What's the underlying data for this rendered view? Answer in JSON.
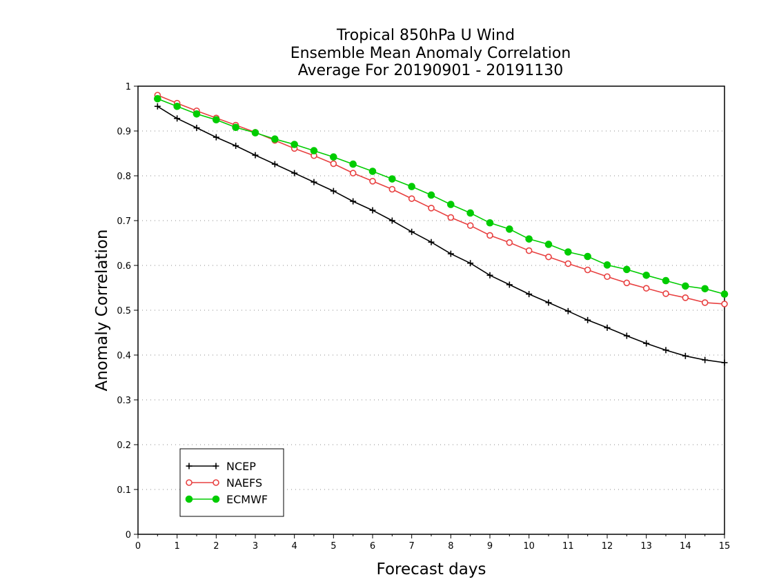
{
  "chart_data": {
    "type": "line",
    "title": [
      "Tropical 850hPa U Wind",
      "Ensemble Mean Anomaly Correlation",
      "Average For 20190901 - 20191130"
    ],
    "xlabel": "Forecast days",
    "ylabel": "Anomaly Correlation",
    "xlim": [
      0,
      15
    ],
    "ylim": [
      0,
      1
    ],
    "xticks": [
      "0",
      "1",
      "2",
      "3",
      "4",
      "5",
      "6",
      "7",
      "8",
      "9",
      "10",
      "11",
      "12",
      "13",
      "14",
      "15"
    ],
    "yticks": [
      "0",
      "0.1",
      "0.2",
      "0.3",
      "0.4",
      "0.5",
      "0.6",
      "0.7",
      "0.8",
      "0.9",
      "1"
    ],
    "grid": true,
    "legend_position": "bottom-left",
    "x": [
      0.5,
      1,
      1.5,
      2,
      2.5,
      3,
      3.5,
      4,
      4.5,
      5,
      5.5,
      6,
      6.5,
      7,
      7.5,
      8,
      8.5,
      9,
      9.5,
      10,
      10.5,
      11,
      11.5,
      12,
      12.5,
      13,
      13.5,
      14,
      14.5,
      15
    ],
    "series": [
      {
        "name": "NCEP",
        "color": "#000000",
        "marker": "plus",
        "values": [
          0.955,
          0.928,
          0.907,
          0.886,
          0.867,
          0.846,
          0.826,
          0.806,
          0.786,
          0.766,
          0.743,
          0.723,
          0.7,
          0.675,
          0.652,
          0.626,
          0.605,
          0.578,
          0.557,
          0.536,
          0.517,
          0.498,
          0.478,
          0.461,
          0.443,
          0.426,
          0.411,
          0.398,
          0.389,
          0.383
        ]
      },
      {
        "name": "NAEFS",
        "color": "#e84040",
        "marker": "open-circle",
        "values": [
          0.98,
          0.962,
          0.945,
          0.929,
          0.913,
          0.897,
          0.879,
          0.861,
          0.845,
          0.827,
          0.806,
          0.788,
          0.77,
          0.749,
          0.728,
          0.707,
          0.689,
          0.667,
          0.651,
          0.633,
          0.619,
          0.604,
          0.59,
          0.575,
          0.561,
          0.549,
          0.537,
          0.528,
          0.517,
          0.514
        ]
      },
      {
        "name": "ECMWF",
        "color": "#00cc00",
        "marker": "filled-circle",
        "values": [
          0.972,
          0.955,
          0.938,
          0.925,
          0.908,
          0.896,
          0.882,
          0.87,
          0.856,
          0.842,
          0.826,
          0.81,
          0.793,
          0.776,
          0.757,
          0.736,
          0.717,
          0.695,
          0.681,
          0.659,
          0.647,
          0.63,
          0.62,
          0.601,
          0.591,
          0.578,
          0.566,
          0.554,
          0.548,
          0.536
        ]
      }
    ]
  }
}
